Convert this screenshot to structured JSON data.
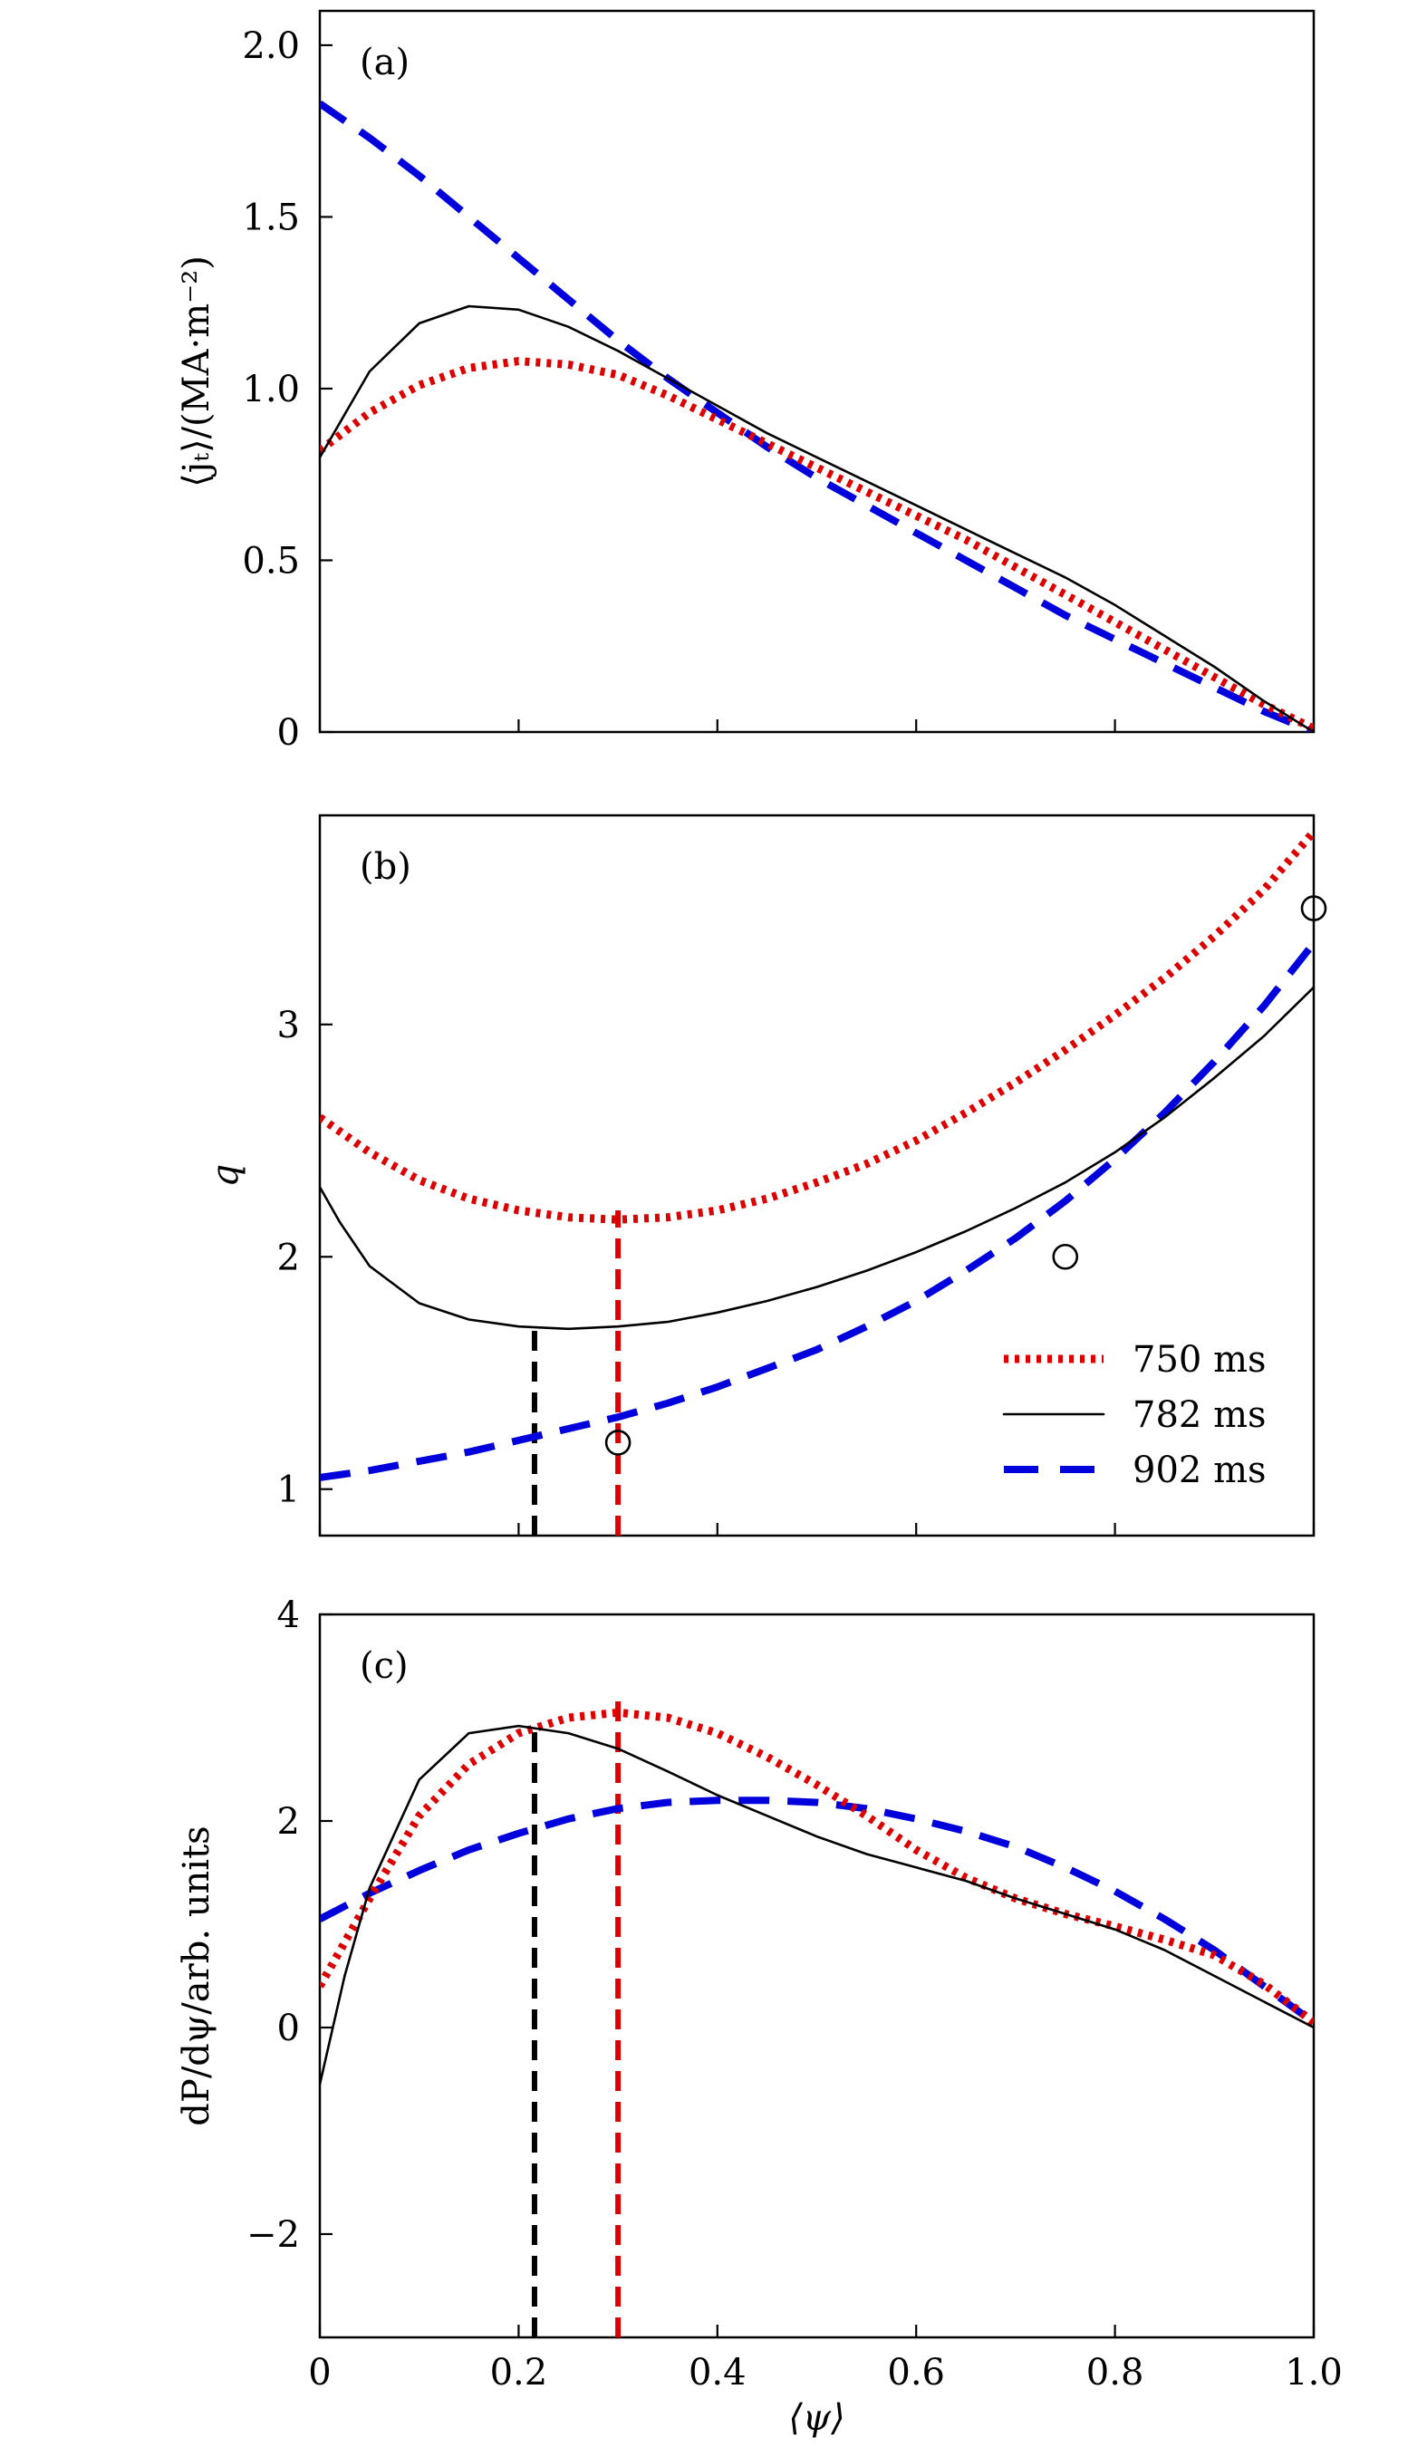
{
  "xlabel": "⟨ψ⟩",
  "legend": {
    "placement": "lower-right of panel (b)",
    "entries": [
      {
        "label": "750 ms",
        "color": "#dd0000",
        "style": "dotted"
      },
      {
        "label": "782 ms",
        "color": "#000000",
        "style": "solid"
      },
      {
        "label": "902 ms",
        "color": "#0000dd",
        "style": "dashed"
      }
    ]
  },
  "chart_data": [
    {
      "type": "line",
      "panel": "(a)",
      "ylabel": "⟨jₜ⟩/(MA·m⁻²)",
      "xlim": [
        0,
        1.0
      ],
      "ylim": [
        0,
        2.1
      ],
      "xticks": [
        0,
        0.2,
        0.4,
        0.6,
        0.8,
        1.0
      ],
      "yticks": [
        0,
        0.5,
        1.0,
        1.5,
        2.0
      ],
      "ytick_labels": [
        "0",
        "0.5",
        "1.0",
        "1.5",
        "2.0"
      ],
      "series": [
        {
          "name": "750 ms",
          "x": [
            0,
            0.05,
            0.1,
            0.15,
            0.2,
            0.25,
            0.3,
            0.35,
            0.4,
            0.45,
            0.5,
            0.55,
            0.6,
            0.65,
            0.7,
            0.75,
            0.8,
            0.85,
            0.9,
            0.95,
            1.0
          ],
          "y": [
            0.82,
            0.93,
            1.01,
            1.06,
            1.08,
            1.07,
            1.04,
            0.98,
            0.91,
            0.84,
            0.77,
            0.7,
            0.63,
            0.56,
            0.48,
            0.4,
            0.32,
            0.24,
            0.16,
            0.08,
            0.01
          ]
        },
        {
          "name": "782 ms",
          "x": [
            0,
            0.05,
            0.1,
            0.15,
            0.2,
            0.25,
            0.3,
            0.35,
            0.4,
            0.45,
            0.5,
            0.55,
            0.6,
            0.65,
            0.7,
            0.75,
            0.8,
            0.85,
            0.9,
            0.95,
            1.0
          ],
          "y": [
            0.8,
            1.05,
            1.19,
            1.24,
            1.23,
            1.18,
            1.11,
            1.03,
            0.95,
            0.87,
            0.8,
            0.73,
            0.66,
            0.59,
            0.52,
            0.45,
            0.37,
            0.28,
            0.19,
            0.09,
            0.0
          ]
        },
        {
          "name": "902 ms",
          "x": [
            0,
            0.05,
            0.1,
            0.15,
            0.2,
            0.25,
            0.3,
            0.35,
            0.4,
            0.45,
            0.5,
            0.55,
            0.6,
            0.65,
            0.7,
            0.75,
            0.8,
            0.85,
            0.9,
            0.95,
            1.0
          ],
          "y": [
            1.83,
            1.73,
            1.62,
            1.5,
            1.38,
            1.26,
            1.14,
            1.03,
            0.93,
            0.83,
            0.74,
            0.66,
            0.58,
            0.5,
            0.42,
            0.34,
            0.27,
            0.2,
            0.13,
            0.06,
            0.0
          ]
        }
      ]
    },
    {
      "type": "line",
      "panel": "(b)",
      "ylabel": "q",
      "xlim": [
        0,
        1.0
      ],
      "ylim": [
        0.8,
        3.9
      ],
      "xticks": [
        0,
        0.2,
        0.4,
        0.6,
        0.8,
        1.0
      ],
      "yticks": [
        1,
        2,
        3
      ],
      "ytick_labels": [
        "1",
        "2",
        "3"
      ],
      "series": [
        {
          "name": "750 ms",
          "x": [
            0,
            0.05,
            0.1,
            0.15,
            0.2,
            0.25,
            0.3,
            0.35,
            0.4,
            0.45,
            0.5,
            0.55,
            0.6,
            0.65,
            0.7,
            0.75,
            0.8,
            0.85,
            0.9,
            0.95,
            1.0
          ],
          "y": [
            2.6,
            2.45,
            2.33,
            2.25,
            2.2,
            2.17,
            2.16,
            2.17,
            2.2,
            2.25,
            2.32,
            2.4,
            2.5,
            2.62,
            2.75,
            2.89,
            3.04,
            3.2,
            3.38,
            3.58,
            3.83
          ]
        },
        {
          "name": "782 ms",
          "x": [
            0,
            0.02,
            0.05,
            0.1,
            0.15,
            0.2,
            0.25,
            0.3,
            0.35,
            0.4,
            0.45,
            0.5,
            0.55,
            0.6,
            0.65,
            0.7,
            0.75,
            0.8,
            0.85,
            0.9,
            0.95,
            1.0
          ],
          "y": [
            2.3,
            2.15,
            1.96,
            1.8,
            1.73,
            1.7,
            1.69,
            1.7,
            1.72,
            1.76,
            1.81,
            1.87,
            1.94,
            2.02,
            2.11,
            2.21,
            2.32,
            2.45,
            2.6,
            2.77,
            2.95,
            3.16
          ]
        },
        {
          "name": "902 ms",
          "x": [
            0,
            0.05,
            0.1,
            0.15,
            0.2,
            0.25,
            0.3,
            0.35,
            0.4,
            0.45,
            0.5,
            0.55,
            0.6,
            0.65,
            0.7,
            0.75,
            0.8,
            0.85,
            0.9,
            0.95,
            1.0
          ],
          "y": [
            1.05,
            1.08,
            1.12,
            1.16,
            1.21,
            1.26,
            1.31,
            1.37,
            1.44,
            1.52,
            1.6,
            1.7,
            1.81,
            1.94,
            2.08,
            2.24,
            2.42,
            2.62,
            2.84,
            3.08,
            3.35
          ]
        }
      ],
      "markers": [
        {
          "shape": "open-circle",
          "x": 0.3,
          "y": 1.2
        },
        {
          "shape": "open-circle",
          "x": 0.75,
          "y": 2.0
        },
        {
          "shape": "open-circle",
          "x": 1.0,
          "y": 3.5
        }
      ],
      "vlines": [
        {
          "x": 0.216,
          "y_to": 1.7,
          "color": "#000000",
          "style": "dashed"
        },
        {
          "x": 0.3,
          "y_to": 2.2,
          "color": "#dd0000",
          "style": "dashed"
        }
      ]
    },
    {
      "type": "line",
      "panel": "(c)",
      "ylabel": "dP/dψ/arb. units",
      "xlim": [
        0,
        1.0
      ],
      "ylim": [
        -3,
        4
      ],
      "xticks": [
        0,
        0.2,
        0.4,
        0.6,
        0.8,
        1.0
      ],
      "xtick_labels": [
        "0",
        "0.2",
        "0.4",
        "0.6",
        "0.8",
        "1.0"
      ],
      "yticks": [
        -2,
        0,
        2,
        4
      ],
      "ytick_labels": [
        "−2",
        "0",
        "2",
        "4"
      ],
      "series": [
        {
          "name": "750 ms",
          "x": [
            0,
            0.05,
            0.1,
            0.15,
            0.2,
            0.25,
            0.3,
            0.35,
            0.4,
            0.45,
            0.5,
            0.55,
            0.6,
            0.65,
            0.7,
            0.75,
            0.8,
            0.85,
            0.9,
            0.95,
            1.0
          ],
          "y": [
            0.4,
            1.25,
            2.05,
            2.55,
            2.85,
            3.0,
            3.05,
            3.0,
            2.85,
            2.62,
            2.35,
            2.05,
            1.72,
            1.45,
            1.25,
            1.1,
            0.98,
            0.85,
            0.7,
            0.42,
            0.05
          ]
        },
        {
          "name": "782 ms",
          "x": [
            0,
            0.025,
            0.05,
            0.1,
            0.15,
            0.2,
            0.25,
            0.3,
            0.35,
            0.4,
            0.45,
            0.5,
            0.55,
            0.6,
            0.65,
            0.7,
            0.75,
            0.8,
            0.85,
            0.9,
            0.95,
            1.0
          ],
          "y": [
            -0.55,
            0.5,
            1.35,
            2.4,
            2.85,
            2.92,
            2.85,
            2.7,
            2.48,
            2.25,
            2.05,
            1.85,
            1.68,
            1.55,
            1.42,
            1.25,
            1.1,
            0.95,
            0.75,
            0.5,
            0.25,
            0.0
          ]
        },
        {
          "name": "902 ms",
          "x": [
            0,
            0.05,
            0.1,
            0.15,
            0.2,
            0.25,
            0.3,
            0.35,
            0.4,
            0.45,
            0.5,
            0.55,
            0.6,
            0.65,
            0.7,
            0.75,
            0.8,
            0.85,
            0.9,
            0.95,
            1.0
          ],
          "y": [
            1.05,
            1.3,
            1.52,
            1.72,
            1.88,
            2.02,
            2.12,
            2.18,
            2.2,
            2.2,
            2.18,
            2.12,
            2.02,
            1.9,
            1.75,
            1.55,
            1.32,
            1.05,
            0.75,
            0.4,
            0.05
          ]
        }
      ],
      "vlines": [
        {
          "x": 0.216,
          "y_from": -3,
          "y_to": 2.92,
          "color": "#000000",
          "style": "dashed"
        },
        {
          "x": 0.3,
          "y_from": -3,
          "y_to": 3.2,
          "color": "#dd0000",
          "style": "dashed"
        }
      ]
    }
  ]
}
